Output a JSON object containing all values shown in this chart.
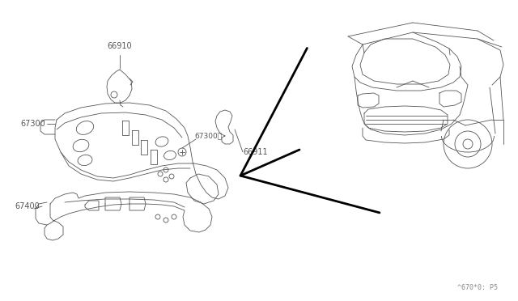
{
  "background_color": "#ffffff",
  "line_color": "#555555",
  "label_color": "#555555",
  "watermark": "^670*0: P5",
  "fig_width": 6.4,
  "fig_height": 3.72,
  "dpi": 100
}
